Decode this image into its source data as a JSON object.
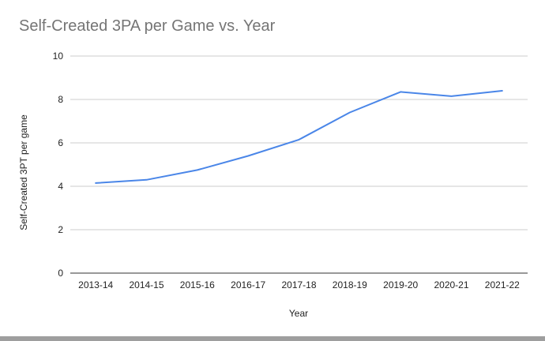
{
  "chart_data": {
    "type": "line",
    "title": "Self-Created 3PA per Game vs. Year",
    "xlabel": "Year",
    "ylabel": "Self-Created 3PT per game",
    "categories": [
      "2013-14",
      "2014-15",
      "2015-16",
      "2016-17",
      "2017-18",
      "2018-19",
      "2019-20",
      "2020-21",
      "2021-22"
    ],
    "series": [
      {
        "values": [
          4.15,
          4.3,
          4.75,
          5.4,
          6.15,
          7.4,
          8.35,
          8.15,
          8.4
        ],
        "color": "#4a86e8"
      }
    ],
    "ylim": [
      0,
      10
    ],
    "yticks": [
      0,
      2,
      4,
      6,
      8,
      10
    ],
    "grid": true,
    "gridline_color": "#cccccc",
    "baseline_color": "#333333"
  }
}
